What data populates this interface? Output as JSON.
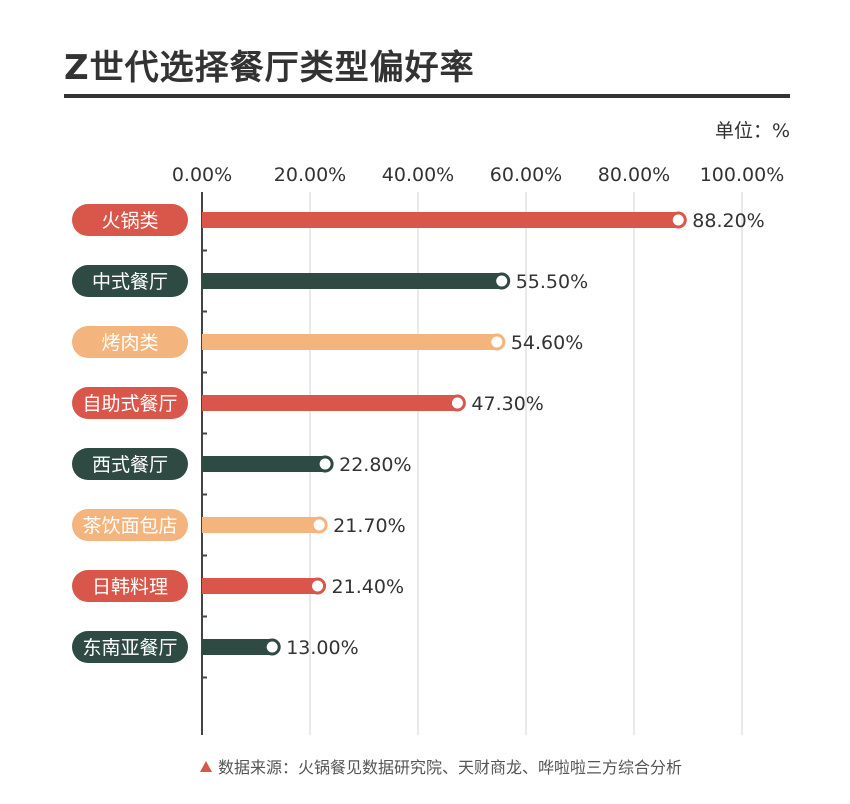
{
  "header": {
    "title": "Z世代选择餐厅类型偏好率",
    "unit": "单位：%"
  },
  "footer": {
    "source": "数据来源：火锅餐见数据研究院、天财商龙、哗啦啦三方综合分析"
  },
  "chart_data": {
    "type": "bar",
    "orientation": "horizontal",
    "title": "Z世代选择餐厅类型偏好率",
    "xlim": [
      0,
      100
    ],
    "ticks": [
      0,
      20,
      40,
      60,
      80,
      100
    ],
    "tick_labels": [
      "0.00%",
      "20.00%",
      "40.00%",
      "60.00%",
      "80.00%",
      "100.00%"
    ],
    "categories": [
      "火锅类",
      "中式餐厅",
      "烤肉类",
      "自助式餐厅",
      "西式餐厅",
      "茶饮面包店",
      "日韩料理",
      "东南亚餐厅"
    ],
    "values": [
      88.2,
      55.5,
      54.6,
      47.3,
      22.8,
      21.7,
      21.4,
      13.0
    ],
    "value_labels": [
      "88.20%",
      "55.50%",
      "54.60%",
      "47.30%",
      "22.80%",
      "21.70%",
      "21.40%",
      "13.00%"
    ],
    "colors": [
      "#d9574a",
      "#2f4a43",
      "#f3b47e",
      "#d9574a",
      "#2f4a43",
      "#f3b47e",
      "#d9574a",
      "#2f4a43"
    ],
    "grid": true
  }
}
